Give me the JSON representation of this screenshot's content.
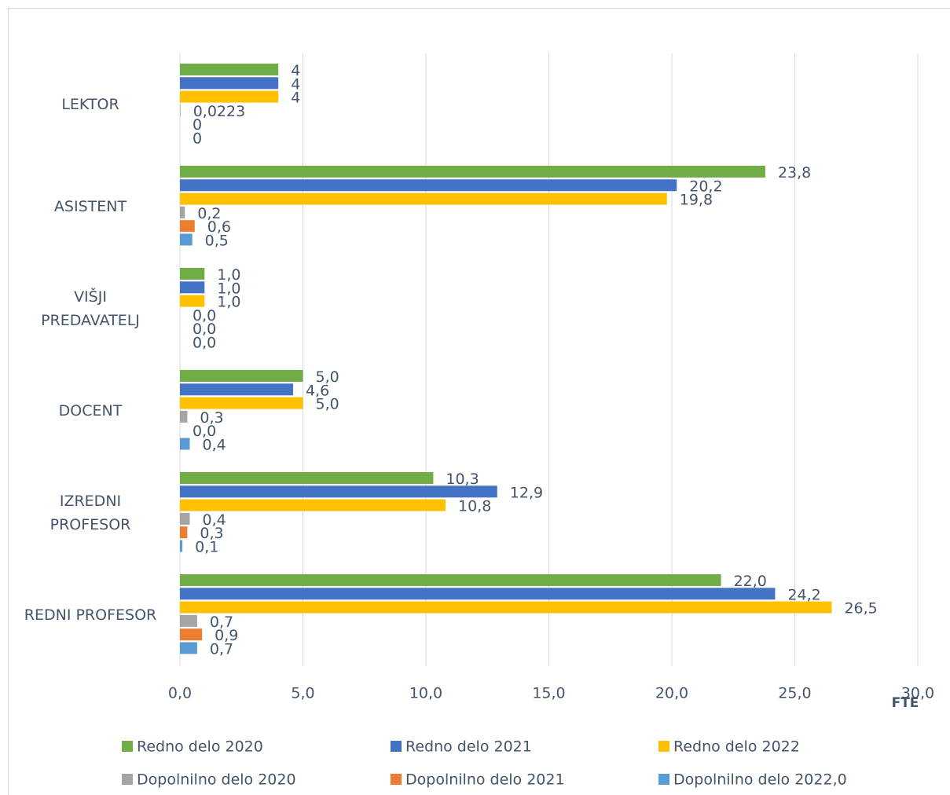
{
  "chart_data": {
    "type": "hbar",
    "categories": [
      "LEKTOR",
      "ASISTENT",
      "VIŠJI\nPREDAVATELJ",
      "DOCENT",
      "IZREDNI\nPROFESOR",
      "REDNI PROFESOR"
    ],
    "series": [
      {
        "name": "Redno delo 2020",
        "color": "#70ad47",
        "values": [
          4,
          23.8,
          1.0,
          5.0,
          10.3,
          22.0
        ],
        "value_labels": [
          "4",
          "23,8",
          "1,0",
          "5,0",
          "10,3",
          "22,0"
        ]
      },
      {
        "name": "Redno delo 2021",
        "color": "#4472c4",
        "values": [
          4,
          20.2,
          1.0,
          4.6,
          12.9,
          24.2
        ],
        "value_labels": [
          "4",
          "20,2",
          "1,0",
          "4,6",
          "12,9",
          "24,2"
        ]
      },
      {
        "name": "Redno delo 2022",
        "color": "#ffc000",
        "values": [
          4,
          19.8,
          1.0,
          5.0,
          10.8,
          26.5
        ],
        "value_labels": [
          "4",
          "19,8",
          "1,0",
          "5,0",
          "10,8",
          "26,5"
        ]
      },
      {
        "name": "Dopolnilno delo 2020",
        "color": "#a5a5a5",
        "values": [
          0.0223,
          0.2,
          0.0,
          0.3,
          0.4,
          0.7
        ],
        "value_labels": [
          "0,0223",
          "0,2",
          "0,0",
          "0,3",
          "0,4",
          "0,7"
        ]
      },
      {
        "name": "Dopolnilno delo 2021",
        "color": "#ed7d31",
        "values": [
          0,
          0.6,
          0.0,
          0.0,
          0.3,
          0.9
        ],
        "value_labels": [
          "0",
          "0,6",
          "0,0",
          "0,0",
          "0,3",
          "0,9"
        ]
      },
      {
        "name": "Dopolnilno delo 2022,0",
        "color": "#5b9bd5",
        "values": [
          0,
          0.5,
          0.0,
          0.4,
          0.1,
          0.7
        ],
        "value_labels": [
          "0",
          "0,5",
          "0,0",
          "0,4",
          "0,1",
          "0,7"
        ]
      }
    ],
    "xlim": [
      0,
      30
    ],
    "xticks": [
      {
        "value": 0,
        "label": "0,0"
      },
      {
        "value": 5,
        "label": "5,0"
      },
      {
        "value": 10,
        "label": "10,0"
      },
      {
        "value": 15,
        "label": "15,0"
      },
      {
        "value": 20,
        "label": "20,0"
      },
      {
        "value": 25,
        "label": "25,0"
      },
      {
        "value": 30,
        "label": "30,0"
      }
    ],
    "x_label": "FTE",
    "grid": true
  }
}
